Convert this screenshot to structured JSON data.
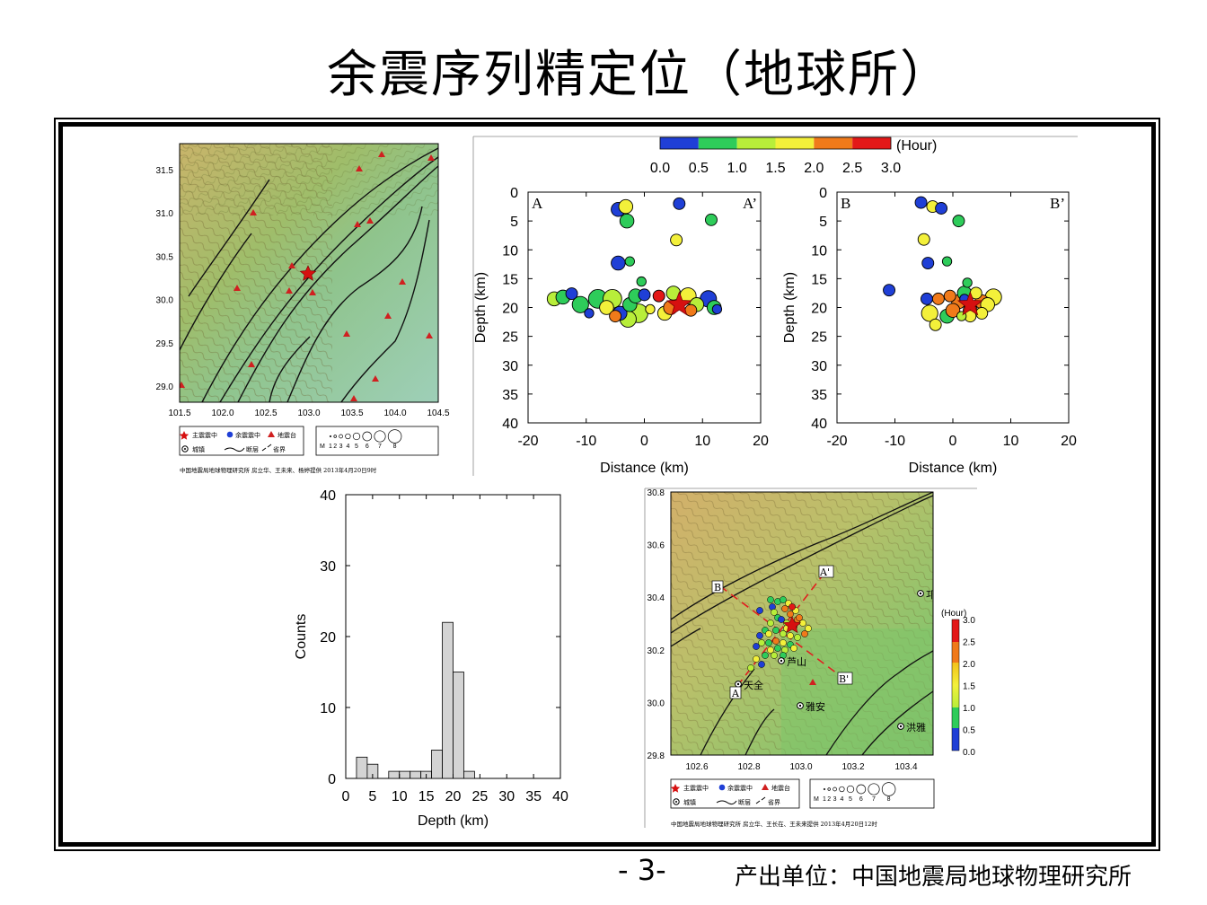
{
  "slide": {
    "title": "余震序列精定位（地球所）",
    "page_number": "- 3-",
    "producer": "产出单位：中国地震局地球物理研究所"
  },
  "colors": {
    "t0": "#1f3fd6",
    "t1": "#2ecc5a",
    "t2": "#b8ee3a",
    "t3": "#f3f03a",
    "t4": "#f07a1a",
    "t5": "#e31818",
    "mainshock": "#d61010",
    "hist_bar": "#d4d4d4"
  },
  "map1": {
    "x_ticks": [
      "101.5",
      "102.0",
      "102.5",
      "103.0",
      "103.5",
      "104.0",
      "104.5"
    ],
    "y_ticks": [
      "31.5",
      "31.0",
      "30.5",
      "30.0",
      "29.5",
      "29.0"
    ],
    "legend": {
      "mainshock": "主震震中",
      "aftershock": "余震震中",
      "station": "地震台",
      "city": "城镇",
      "fault": "断层",
      "border": "省界",
      "mag_label": "M",
      "mag_values": [
        "1",
        "2",
        "3",
        "4",
        "5",
        "6",
        "7",
        "8"
      ]
    },
    "credit": "中国地震局地球物理研究所    房立华、王未来、杨婷提供    2013年4月20日9时"
  },
  "map2": {
    "x_ticks": [
      "102.6",
      "102.8",
      "103.0",
      "103.2",
      "103.4"
    ],
    "y_ticks": [
      "30.8",
      "30.6",
      "30.4",
      "30.2",
      "30.0",
      "29.8"
    ],
    "profile_labels": {
      "a": "A",
      "a_end": "A'",
      "b": "B",
      "b_end": "B'"
    },
    "cities": [
      "芦山",
      "天全",
      "雅安",
      "洪雅",
      "邛"
    ],
    "colorbar_title": "(Hour)",
    "colorbar_ticks": [
      "3.0",
      "2.5",
      "2.0",
      "1.5",
      "1.0",
      "0.5",
      "0.0"
    ],
    "legend": {
      "mainshock": "主震震中",
      "aftershock": "余震震中",
      "station": "地震台",
      "city": "城镇",
      "fault": "断层",
      "border": "省界",
      "mag_label": "M",
      "mag_values": [
        "1",
        "2",
        "3",
        "4",
        "5",
        "6",
        "7",
        "8"
      ]
    },
    "credit": "中国地震局地球物理研究所    房立华、王长在、王未来提供    2013年4月20日12时"
  },
  "colorbar_top": {
    "title": "(Hour)",
    "ticks": [
      "0.0",
      "0.5",
      "1.0",
      "1.5",
      "2.0",
      "2.5",
      "3.0"
    ]
  },
  "chart_data": [
    {
      "type": "scatter",
      "panel": "profile-A",
      "corner_left": "A",
      "corner_right": "A’",
      "xlabel": "Distance (km)",
      "ylabel": "Depth (km)",
      "xlim": [
        -20,
        20
      ],
      "ylim": [
        0,
        40
      ],
      "y_inverted": true,
      "x_ticks": [
        "-20",
        "-10",
        "0",
        "10",
        "20"
      ],
      "y_ticks": [
        "0",
        "5",
        "10",
        "15",
        "20",
        "25",
        "30",
        "35",
        "40"
      ],
      "mainshock": {
        "x": 6,
        "y": 19.5
      },
      "points": [
        {
          "x": -4.5,
          "y": 3,
          "t": 0.2,
          "m": 3
        },
        {
          "x": -3.2,
          "y": 2.5,
          "t": 1.6,
          "m": 3
        },
        {
          "x": -3,
          "y": 5,
          "t": 0.8,
          "m": 3
        },
        {
          "x": 6,
          "y": 2,
          "t": 0.2,
          "m": 2.5
        },
        {
          "x": 11.5,
          "y": 4.8,
          "t": 0.8,
          "m": 2.5
        },
        {
          "x": 5.5,
          "y": 8.3,
          "t": 1.6,
          "m": 2.5
        },
        {
          "x": -4.5,
          "y": 12.3,
          "t": 0.2,
          "m": 3
        },
        {
          "x": -2.5,
          "y": 12,
          "t": 0.8,
          "m": 2
        },
        {
          "x": -0.5,
          "y": 15.5,
          "t": 0.8,
          "m": 2
        },
        {
          "x": -15.5,
          "y": 18.5,
          "t": 1.2,
          "m": 3
        },
        {
          "x": -14,
          "y": 18.2,
          "t": 0.8,
          "m": 3
        },
        {
          "x": -12.5,
          "y": 17.6,
          "t": 0.2,
          "m": 2.5
        },
        {
          "x": -11,
          "y": 19.5,
          "t": 0.8,
          "m": 3.5
        },
        {
          "x": -9.5,
          "y": 21,
          "t": 0.2,
          "m": 2
        },
        {
          "x": -8,
          "y": 18.5,
          "t": 0.8,
          "m": 4
        },
        {
          "x": -6.5,
          "y": 20,
          "t": 1.6,
          "m": 3
        },
        {
          "x": -5.5,
          "y": 18.5,
          "t": 1.2,
          "m": 4
        },
        {
          "x": -5,
          "y": 21.5,
          "t": 2.2,
          "m": 2.5
        },
        {
          "x": -4.2,
          "y": 21,
          "t": 0.2,
          "m": 3
        },
        {
          "x": -2.8,
          "y": 22,
          "t": 1.2,
          "m": 3.5
        },
        {
          "x": -2.5,
          "y": 19.5,
          "t": 0.8,
          "m": 3
        },
        {
          "x": -1,
          "y": 21,
          "t": 1.2,
          "m": 4
        },
        {
          "x": -1.5,
          "y": 18,
          "t": 0.8,
          "m": 3
        },
        {
          "x": 0,
          "y": 17.8,
          "t": 0.2,
          "m": 2.5
        },
        {
          "x": 1,
          "y": 20.3,
          "t": 1.6,
          "m": 2
        },
        {
          "x": 2.5,
          "y": 18,
          "t": 2.8,
          "m": 2.5
        },
        {
          "x": 3.5,
          "y": 21,
          "t": 1.6,
          "m": 3
        },
        {
          "x": 4.5,
          "y": 20,
          "t": 2.2,
          "m": 3
        },
        {
          "x": 5,
          "y": 17.5,
          "t": 1.2,
          "m": 3
        },
        {
          "x": 7.5,
          "y": 18,
          "t": 1.6,
          "m": 3.5
        },
        {
          "x": 8,
          "y": 20.5,
          "t": 2.2,
          "m": 2.5
        },
        {
          "x": 9,
          "y": 19.5,
          "t": 1.2,
          "m": 3
        },
        {
          "x": 11,
          "y": 18.5,
          "t": 0.2,
          "m": 3.5
        },
        {
          "x": 12,
          "y": 20,
          "t": 0.8,
          "m": 3
        },
        {
          "x": 12.5,
          "y": 20.3,
          "t": 0.2,
          "m": 2
        }
      ]
    },
    {
      "type": "scatter",
      "panel": "profile-B",
      "corner_left": "B",
      "corner_right": "B’",
      "xlabel": "Distance (km)",
      "ylabel": "Depth (km)",
      "xlim": [
        -20,
        20
      ],
      "ylim": [
        0,
        40
      ],
      "y_inverted": true,
      "x_ticks": [
        "-20",
        "-10",
        "0",
        "10",
        "20"
      ],
      "y_ticks": [
        "0",
        "5",
        "10",
        "15",
        "20",
        "25",
        "30",
        "35",
        "40"
      ],
      "mainshock": {
        "x": 3,
        "y": 19.5
      },
      "points": [
        {
          "x": -5.5,
          "y": 1.8,
          "t": 0.2,
          "m": 2.5
        },
        {
          "x": -3.5,
          "y": 2.5,
          "t": 1.6,
          "m": 2.5
        },
        {
          "x": -2,
          "y": 2.8,
          "t": 0.2,
          "m": 2.5
        },
        {
          "x": 1,
          "y": 5,
          "t": 0.8,
          "m": 2.5
        },
        {
          "x": -5,
          "y": 8.2,
          "t": 1.6,
          "m": 2.5
        },
        {
          "x": -4.3,
          "y": 12.3,
          "t": 0.2,
          "m": 2.5
        },
        {
          "x": -1,
          "y": 12,
          "t": 0.8,
          "m": 2
        },
        {
          "x": -11,
          "y": 17,
          "t": 0.2,
          "m": 2.5
        },
        {
          "x": -4.5,
          "y": 18.5,
          "t": 0.2,
          "m": 2.5
        },
        {
          "x": -2.5,
          "y": 18.5,
          "t": 2.2,
          "m": 2.5
        },
        {
          "x": -0.5,
          "y": 18,
          "t": 2.2,
          "m": 2.5
        },
        {
          "x": 1,
          "y": 19,
          "t": 2.2,
          "m": 3
        },
        {
          "x": 2,
          "y": 18.5,
          "t": 0.2,
          "m": 2
        },
        {
          "x": 2,
          "y": 17.5,
          "t": 0.8,
          "m": 3
        },
        {
          "x": 2.5,
          "y": 15.7,
          "t": 0.8,
          "m": 2
        },
        {
          "x": 4,
          "y": 17.5,
          "t": 1.6,
          "m": 2.5
        },
        {
          "x": 5,
          "y": 19,
          "t": 2.2,
          "m": 3
        },
        {
          "x": 6,
          "y": 19.5,
          "t": 1.6,
          "m": 3
        },
        {
          "x": 7,
          "y": 18.2,
          "t": 1.6,
          "m": 3.5
        },
        {
          "x": -4,
          "y": 21,
          "t": 1.6,
          "m": 3.5
        },
        {
          "x": -3,
          "y": 23,
          "t": 1.6,
          "m": 2.5
        },
        {
          "x": -1,
          "y": 21.5,
          "t": 0.8,
          "m": 3
        },
        {
          "x": 0,
          "y": 20.5,
          "t": 2.2,
          "m": 3
        },
        {
          "x": 1.5,
          "y": 21.5,
          "t": 1.2,
          "m": 2
        },
        {
          "x": 3,
          "y": 20.5,
          "t": 2.2,
          "m": 3
        },
        {
          "x": 3,
          "y": 21.5,
          "t": 1.6,
          "m": 2.5
        },
        {
          "x": 5,
          "y": 21,
          "t": 1.6,
          "m": 2.5
        }
      ]
    },
    {
      "type": "bar",
      "panel": "depth-histogram",
      "xlabel": "Depth (km)",
      "ylabel": "Counts",
      "xlim": [
        0,
        40
      ],
      "ylim": [
        0,
        40
      ],
      "x_ticks": [
        "0",
        "5",
        "10",
        "15",
        "20",
        "25",
        "30",
        "35",
        "40"
      ],
      "y_ticks": [
        "0",
        "10",
        "20",
        "30",
        "40"
      ],
      "bin_width": 2,
      "bins": [
        {
          "x0": 2,
          "count": 3
        },
        {
          "x0": 4,
          "count": 2
        },
        {
          "x0": 8,
          "count": 1
        },
        {
          "x0": 10,
          "count": 1
        },
        {
          "x0": 12,
          "count": 1
        },
        {
          "x0": 14,
          "count": 1
        },
        {
          "x0": 16,
          "count": 4
        },
        {
          "x0": 18,
          "count": 22
        },
        {
          "x0": 20,
          "count": 15
        },
        {
          "x0": 22,
          "count": 1
        }
      ]
    }
  ]
}
